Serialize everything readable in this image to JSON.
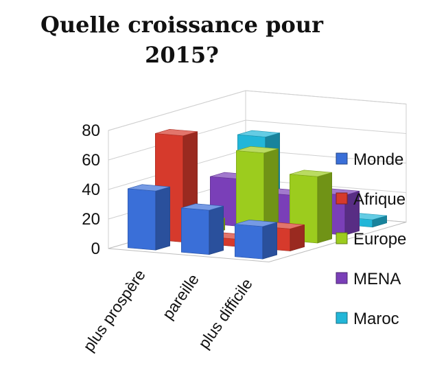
{
  "chart_data": {
    "type": "bar",
    "title_line1": "Quelle croissance pour",
    "title_line2": "2015?",
    "categories": [
      "plus prospère",
      "pareille",
      "plus difficile"
    ],
    "series": [
      {
        "name": "Monde",
        "color": "#3a6fd8",
        "values": [
          40,
          30,
          22
        ]
      },
      {
        "name": "Afrique",
        "color": "#d63a2c",
        "values": [
          72,
          5,
          15
        ]
      },
      {
        "name": "Europe",
        "color": "#9ccc1e",
        "values": [
          8,
          58,
          45
        ]
      },
      {
        "name": "MENA",
        "color": "#7a3fb8",
        "values": [
          32,
          24,
          27
        ]
      },
      {
        "name": "Maroc",
        "color": "#22b6d8",
        "values": [
          55,
          8,
          5
        ]
      }
    ],
    "ylim": [
      0,
      80
    ],
    "yticks": [
      0,
      20,
      40,
      60,
      80
    ],
    "grid": true,
    "legend_position": "right",
    "projection": "3d-clustered-column"
  }
}
